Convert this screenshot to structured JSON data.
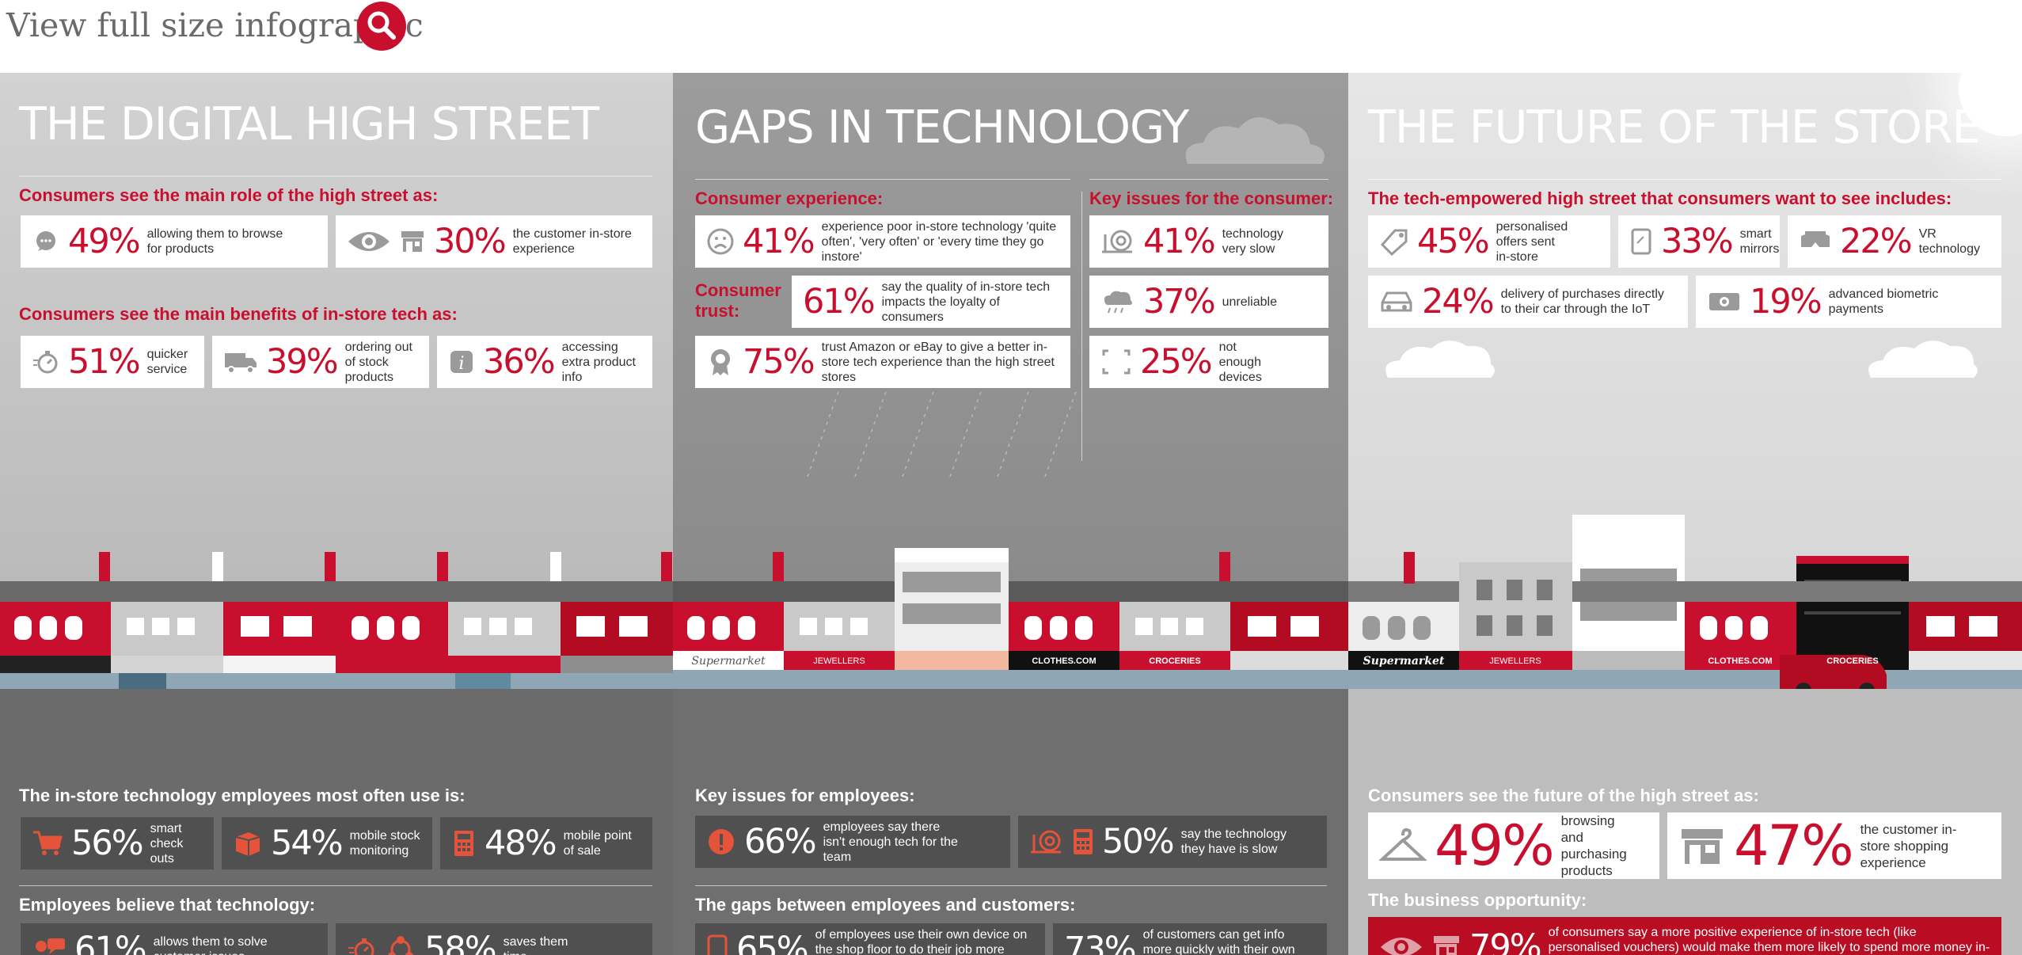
{
  "header": {
    "link_text": "View full size infographic",
    "search_icon": "magnifier-icon"
  },
  "colors": {
    "accent": "#c8102e",
    "dark_box": "#505050",
    "white_box": "#ffffff"
  },
  "digital": {
    "title": "THE DIGITAL HIGH STREET",
    "role_heading": "Consumers see the main role of the high street as:",
    "role_stats": [
      {
        "pct": "49%",
        "text": "allowing them to browse for products"
      },
      {
        "pct": "30%",
        "text": "the customer in-store experience"
      }
    ],
    "benefits_heading": "Consumers see the main benefits of in-store tech as:",
    "benefit_stats": [
      {
        "pct": "51%",
        "text": "quicker service"
      },
      {
        "pct": "39%",
        "text": "ordering out of stock products"
      },
      {
        "pct": "36%",
        "text": "accessing extra product info"
      }
    ],
    "employee_heading": "The in-store technology employees most often use is:",
    "employee_stats": [
      {
        "pct": "56%",
        "text": "smart check outs"
      },
      {
        "pct": "54%",
        "text": "mobile stock monitoring"
      },
      {
        "pct": "48%",
        "text": "mobile point of sale"
      }
    ],
    "believe_heading": "Employees believe that technology:",
    "believe_stats": [
      {
        "pct": "61%",
        "text": "allows them to solve customer issues"
      },
      {
        "pct": "58%",
        "text": "saves them time"
      }
    ]
  },
  "gaps": {
    "title": "GAPS IN TECHNOLOGY",
    "experience_heading": "Consumer experience:",
    "experience_stat": {
      "pct": "41%",
      "text": "experience poor in-store technology 'quite often', 'very often' or 'every time they go instore'"
    },
    "trust_label": "Consumer trust:",
    "trust_stats": [
      {
        "pct": "61%",
        "text": "say the quality of in-store tech impacts the loyalty of consumers"
      },
      {
        "pct": "75%",
        "text": "trust Amazon or eBay to give a better in-store tech experience than the high street stores"
      }
    ],
    "key_issues_heading": "Key issues for the consumer:",
    "key_issues": [
      {
        "pct": "41%",
        "text": "technology very slow"
      },
      {
        "pct": "37%",
        "text": "unreliable"
      },
      {
        "pct": "25%",
        "text": "not enough devices"
      }
    ],
    "employee_issues_heading": "Key issues for employees:",
    "employee_issues": [
      {
        "pct": "66%",
        "text": "employees say there isn't enough tech for the team"
      },
      {
        "pct": "50%",
        "text": "say the technology they have is slow"
      }
    ],
    "gap_heading": "The gaps between employees and customers:",
    "gap_stats": [
      {
        "pct": "65%",
        "text": "of employees use their own device on the shop floor to do their job more effectively"
      },
      {
        "pct": "73%",
        "text": "of customers can get info more quickly with their own devices"
      }
    ]
  },
  "future": {
    "title": "THE FUTURE OF THE STORE",
    "wants_heading": "The tech-empowered high street that consumers want to see includes:",
    "wants_stats": [
      {
        "pct": "45%",
        "text": "personalised offers sent in-store"
      },
      {
        "pct": "33%",
        "text": "smart mirrors"
      },
      {
        "pct": "22%",
        "text": "VR technology"
      },
      {
        "pct": "24%",
        "text": "delivery of purchases directly to their car through the IoT"
      },
      {
        "pct": "19%",
        "text": "advanced biometric payments"
      }
    ],
    "future_heading": "Consumers see the future of the high street as:",
    "future_stats": [
      {
        "pct": "49%",
        "text": "browsing and purchasing products"
      },
      {
        "pct": "47%",
        "text": "the customer in-store shopping experience"
      }
    ],
    "opportunity_heading": "The business opportunity:",
    "opportunity_stat": {
      "pct": "79%",
      "text": "of consumers say a more positive experience of in-store tech (like personalised vouchers) would make them more likely to spend more money in-store"
    }
  },
  "shop_signs": {
    "street2": [
      "Supermarket",
      "JEWELLERS",
      "CLOTHES.COM",
      "CROCERIES"
    ],
    "street3": [
      "Supermarket",
      "JEWELLERS",
      "CLOTHES.COM",
      "CROCERIES"
    ]
  }
}
